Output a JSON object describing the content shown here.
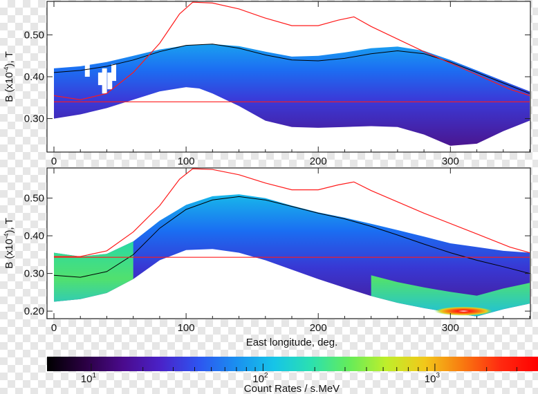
{
  "chart_data": [
    {
      "type": "heatmap",
      "panel": "top",
      "ylabel_prefix": "B (x10",
      "ylabel_exp": "-4",
      "ylabel_suffix": "), T",
      "xlim": [
        0,
        360
      ],
      "ylim": [
        0.22,
        0.58
      ],
      "xticks": [
        0,
        100,
        200,
        300
      ],
      "xtick_labels": [
        "0",
        "100",
        "200",
        "300"
      ],
      "yticks": [
        0.3,
        0.4,
        0.5
      ],
      "ytick_labels": [
        "0.30",
        "0.40",
        "0.50"
      ],
      "band_upper": [
        [
          0,
          0.42
        ],
        [
          20,
          0.425
        ],
        [
          40,
          0.435
        ],
        [
          60,
          0.45
        ],
        [
          80,
          0.465
        ],
        [
          100,
          0.475
        ],
        [
          120,
          0.478
        ],
        [
          140,
          0.473
        ],
        [
          160,
          0.46
        ],
        [
          180,
          0.448
        ],
        [
          200,
          0.45
        ],
        [
          220,
          0.458
        ],
        [
          240,
          0.468
        ],
        [
          260,
          0.472
        ],
        [
          280,
          0.462
        ],
        [
          300,
          0.44
        ],
        [
          320,
          0.415
        ],
        [
          340,
          0.39
        ],
        [
          360,
          0.365
        ]
      ],
      "band_lower": [
        [
          0,
          0.3
        ],
        [
          20,
          0.31
        ],
        [
          40,
          0.325
        ],
        [
          60,
          0.345
        ],
        [
          80,
          0.365
        ],
        [
          100,
          0.375
        ],
        [
          110,
          0.372
        ],
        [
          120,
          0.36
        ],
        [
          140,
          0.33
        ],
        [
          160,
          0.295
        ],
        [
          180,
          0.28
        ],
        [
          200,
          0.278
        ],
        [
          220,
          0.28
        ],
        [
          240,
          0.282
        ],
        [
          260,
          0.28
        ],
        [
          280,
          0.262
        ],
        [
          300,
          0.235
        ],
        [
          320,
          0.24
        ],
        [
          340,
          0.27
        ],
        [
          360,
          0.295
        ]
      ],
      "center_line": [
        [
          0,
          0.41
        ],
        [
          20,
          0.415
        ],
        [
          40,
          0.425
        ],
        [
          60,
          0.44
        ],
        [
          80,
          0.46
        ],
        [
          100,
          0.475
        ],
        [
          120,
          0.478
        ],
        [
          140,
          0.468
        ],
        [
          160,
          0.452
        ],
        [
          180,
          0.44
        ],
        [
          200,
          0.438
        ],
        [
          220,
          0.444
        ],
        [
          240,
          0.455
        ],
        [
          260,
          0.462
        ],
        [
          280,
          0.455
        ],
        [
          300,
          0.435
        ],
        [
          320,
          0.41
        ],
        [
          340,
          0.385
        ],
        [
          360,
          0.36
        ]
      ],
      "red_upper": [
        [
          0,
          0.355
        ],
        [
          20,
          0.345
        ],
        [
          40,
          0.36
        ],
        [
          60,
          0.41
        ],
        [
          80,
          0.48
        ],
        [
          95,
          0.55
        ],
        [
          105,
          0.578
        ],
        [
          120,
          0.576
        ],
        [
          140,
          0.562
        ],
        [
          160,
          0.54
        ],
        [
          180,
          0.522
        ],
        [
          200,
          0.522
        ],
        [
          215,
          0.535
        ],
        [
          227,
          0.543
        ],
        [
          240,
          0.52
        ],
        [
          280,
          0.46
        ],
        [
          320,
          0.405
        ],
        [
          345,
          0.37
        ],
        [
          360,
          0.355
        ]
      ],
      "red_lower": [
        [
          0,
          0.34
        ],
        [
          360,
          0.34
        ]
      ],
      "white_gaps": [
        [
          25,
          0.4,
          0.43
        ],
        [
          35,
          0.38,
          0.41
        ],
        [
          38,
          0.36,
          0.42
        ],
        [
          42,
          0.37,
          0.41
        ],
        [
          45,
          0.39,
          0.43
        ]
      ]
    },
    {
      "type": "heatmap",
      "panel": "bottom",
      "ylabel_prefix": "B (x10",
      "ylabel_exp": "-4",
      "ylabel_suffix": "), T",
      "xlabel": "East longitude, deg.",
      "xlim": [
        0,
        360
      ],
      "ylim": [
        0.18,
        0.58
      ],
      "xticks": [
        0,
        100,
        200,
        300
      ],
      "xtick_labels": [
        "0",
        "100",
        "200",
        "300"
      ],
      "yticks": [
        0.2,
        0.3,
        0.4,
        0.5
      ],
      "ytick_labels": [
        "0.20",
        "0.30",
        "0.40",
        "0.50"
      ],
      "band_upper": [
        [
          0,
          0.355
        ],
        [
          20,
          0.345
        ],
        [
          40,
          0.352
        ],
        [
          60,
          0.385
        ],
        [
          80,
          0.44
        ],
        [
          100,
          0.482
        ],
        [
          120,
          0.505
        ],
        [
          140,
          0.51
        ],
        [
          160,
          0.5
        ],
        [
          180,
          0.48
        ],
        [
          200,
          0.462
        ],
        [
          220,
          0.448
        ],
        [
          240,
          0.432
        ],
        [
          260,
          0.415
        ],
        [
          280,
          0.398
        ],
        [
          300,
          0.38
        ],
        [
          320,
          0.37
        ],
        [
          340,
          0.36
        ],
        [
          360,
          0.355
        ]
      ],
      "band_lower": [
        [
          0,
          0.225
        ],
        [
          20,
          0.232
        ],
        [
          40,
          0.248
        ],
        [
          60,
          0.285
        ],
        [
          80,
          0.335
        ],
        [
          100,
          0.362
        ],
        [
          120,
          0.365
        ],
        [
          140,
          0.355
        ],
        [
          160,
          0.335
        ],
        [
          180,
          0.31
        ],
        [
          200,
          0.285
        ],
        [
          220,
          0.262
        ],
        [
          240,
          0.24
        ],
        [
          260,
          0.222
        ],
        [
          280,
          0.208
        ],
        [
          300,
          0.196
        ],
        [
          320,
          0.186
        ],
        [
          340,
          0.205
        ],
        [
          360,
          0.22
        ]
      ],
      "center_line": [
        [
          0,
          0.295
        ],
        [
          20,
          0.29
        ],
        [
          40,
          0.305
        ],
        [
          60,
          0.35
        ],
        [
          80,
          0.42
        ],
        [
          100,
          0.47
        ],
        [
          120,
          0.495
        ],
        [
          140,
          0.504
        ],
        [
          160,
          0.495
        ],
        [
          180,
          0.478
        ],
        [
          200,
          0.46
        ],
        [
          220,
          0.445
        ],
        [
          240,
          0.425
        ],
        [
          260,
          0.402
        ],
        [
          280,
          0.378
        ],
        [
          300,
          0.355
        ],
        [
          320,
          0.335
        ],
        [
          340,
          0.318
        ],
        [
          360,
          0.3
        ]
      ],
      "red_upper": [
        [
          0,
          0.345
        ],
        [
          20,
          0.345
        ],
        [
          40,
          0.36
        ],
        [
          60,
          0.41
        ],
        [
          80,
          0.48
        ],
        [
          95,
          0.55
        ],
        [
          105,
          0.578
        ],
        [
          120,
          0.576
        ],
        [
          140,
          0.562
        ],
        [
          160,
          0.54
        ],
        [
          180,
          0.522
        ],
        [
          200,
          0.522
        ],
        [
          215,
          0.535
        ],
        [
          227,
          0.543
        ],
        [
          240,
          0.52
        ],
        [
          280,
          0.46
        ],
        [
          320,
          0.405
        ],
        [
          345,
          0.37
        ],
        [
          360,
          0.355
        ]
      ],
      "red_lower": [
        [
          0,
          0.343
        ],
        [
          360,
          0.343
        ]
      ],
      "hotspot": {
        "x": 310,
        "y": 0.2,
        "rx": 22,
        "ry": 0.012
      }
    }
  ],
  "colorbar": {
    "label": "Count Rates / s.MeV",
    "ticks": [
      {
        "base": "10",
        "exp": "1",
        "pos": 0.09
      },
      {
        "base": "10",
        "exp": "2",
        "pos": 0.44
      },
      {
        "base": "10",
        "exp": "3",
        "pos": 0.79
      }
    ],
    "colors": [
      "#000000",
      "#2a0042",
      "#4a0a8c",
      "#4a22c8",
      "#2e54f0",
      "#1a8ff0",
      "#16c4e8",
      "#2be0b0",
      "#64ec5a",
      "#c0ee2a",
      "#f2c81a",
      "#f87a10",
      "#ff2a10",
      "#ff0000"
    ]
  }
}
